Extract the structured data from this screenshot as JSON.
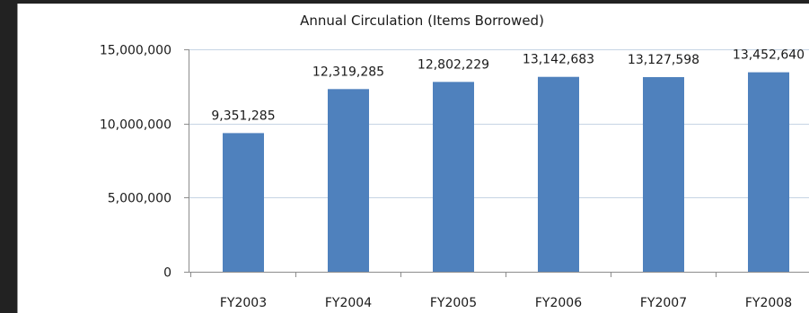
{
  "chart_data": {
    "type": "bar",
    "title": "Annual Circulation (Items Borrowed)",
    "xlabel": "",
    "ylabel": "",
    "categories": [
      "FY2003",
      "FY2004",
      "FY2005",
      "FY2006",
      "FY2007",
      "FY2008"
    ],
    "values": [
      9351285,
      12319285,
      12802229,
      13142683,
      13127598,
      13452640
    ],
    "data_labels": [
      "9,351,285",
      "12,319,285",
      "12,802,229",
      "13,142,683",
      "13,127,598",
      "13,452,640"
    ],
    "ylim": [
      0,
      15000000
    ],
    "yticks": [
      0,
      5000000,
      10000000,
      15000000
    ],
    "ytick_labels": [
      "0",
      "5,000,000",
      "10,000,000",
      "15,000,000"
    ],
    "grid": true,
    "colors": {
      "bar": "#4f81bd",
      "gridline": "#c6d4e4",
      "axis": "#8c8c8c",
      "text": "#1a1a1a",
      "frame": "#222222"
    }
  }
}
